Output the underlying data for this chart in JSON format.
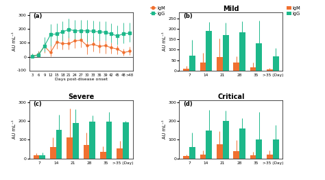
{
  "panel_a": {
    "label": "(a)",
    "x_labels": [
      "3",
      "6",
      "9",
      "12",
      "15",
      "18",
      "21",
      "24",
      "27",
      "30",
      "33",
      "36",
      "39",
      "42",
      "45",
      "48",
      ">48"
    ],
    "igm_y": [
      5,
      15,
      75,
      30,
      105,
      95,
      95,
      115,
      120,
      80,
      90,
      75,
      80,
      65,
      55,
      30,
      40
    ],
    "igm_yerr_low": [
      4,
      12,
      50,
      25,
      50,
      45,
      45,
      55,
      55,
      65,
      55,
      48,
      60,
      45,
      40,
      22,
      28
    ],
    "igm_yerr_high": [
      18,
      28,
      30,
      55,
      55,
      55,
      55,
      55,
      55,
      75,
      55,
      48,
      38,
      38,
      28,
      28,
      32
    ],
    "igg_y": [
      5,
      10,
      78,
      160,
      165,
      180,
      198,
      188,
      188,
      188,
      185,
      180,
      178,
      165,
      150,
      168,
      170
    ],
    "igg_yerr_low": [
      3,
      8,
      42,
      82,
      72,
      62,
      62,
      62,
      62,
      82,
      72,
      62,
      62,
      62,
      62,
      72,
      62
    ],
    "igg_yerr_high": [
      18,
      28,
      62,
      78,
      78,
      78,
      78,
      78,
      78,
      78,
      78,
      78,
      78,
      78,
      78,
      78,
      78
    ],
    "xlabel": "Days post-disease onset",
    "ylabel": "AU mL⁻¹"
  },
  "panel_b": {
    "label": "(b)",
    "title": "Mild",
    "categories": [
      "7",
      "14",
      "21",
      "28",
      "35",
      ">35 (Day)"
    ],
    "igm_y": [
      10,
      40,
      65,
      38,
      15,
      5
    ],
    "igm_yerr": [
      12,
      45,
      90,
      30,
      22,
      8
    ],
    "igg_y": [
      72,
      190,
      172,
      186,
      130,
      70
    ],
    "igg_yerr": [
      75,
      45,
      60,
      52,
      110,
      38
    ],
    "ylabel": "AU mL⁻¹",
    "ylim": [
      0,
      280
    ],
    "yticks": [
      0,
      50,
      100,
      150,
      200,
      250
    ]
  },
  "panel_c": {
    "label": "(c)",
    "title": "Severe",
    "categories": [
      "7",
      "14",
      "21",
      "28",
      "35",
      ">35 (Day)"
    ],
    "igm_y": [
      18,
      62,
      112,
      72,
      35,
      55
    ],
    "igm_yerr": [
      10,
      52,
      155,
      65,
      28,
      40
    ],
    "igg_y": [
      18,
      152,
      190,
      198,
      198,
      192
    ],
    "igg_yerr": [
      12,
      82,
      72,
      32,
      52,
      8
    ],
    "ylabel": "AU mL⁻¹",
    "ylim": [
      0,
      310
    ],
    "yticks": [
      0,
      100,
      200,
      300
    ]
  },
  "panel_d": {
    "label": "(d)",
    "title": "Critical",
    "categories": [
      "7",
      "14",
      "21",
      "28",
      "35",
      ">35 (Day)"
    ],
    "igm_y": [
      12,
      22,
      75,
      38,
      18,
      22
    ],
    "igm_yerr": [
      10,
      22,
      72,
      60,
      18,
      20
    ],
    "igg_y": [
      62,
      148,
      202,
      162,
      100,
      100
    ],
    "igg_yerr": [
      78,
      110,
      55,
      55,
      148,
      80
    ],
    "ylabel": "AU mL⁻¹",
    "ylim": [
      0,
      310
    ],
    "yticks": [
      0,
      100,
      200,
      300
    ]
  },
  "igm_color": "#f07030",
  "igg_color": "#1db88a",
  "bg_color": "#ffffff"
}
